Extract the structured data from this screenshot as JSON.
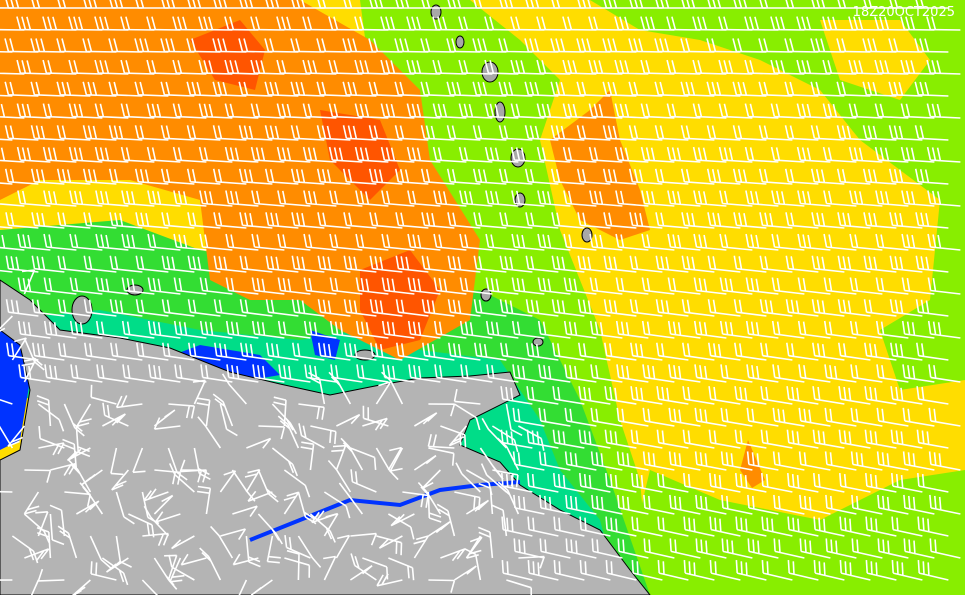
{
  "timestamp": "18Z20OCT2025"
}
